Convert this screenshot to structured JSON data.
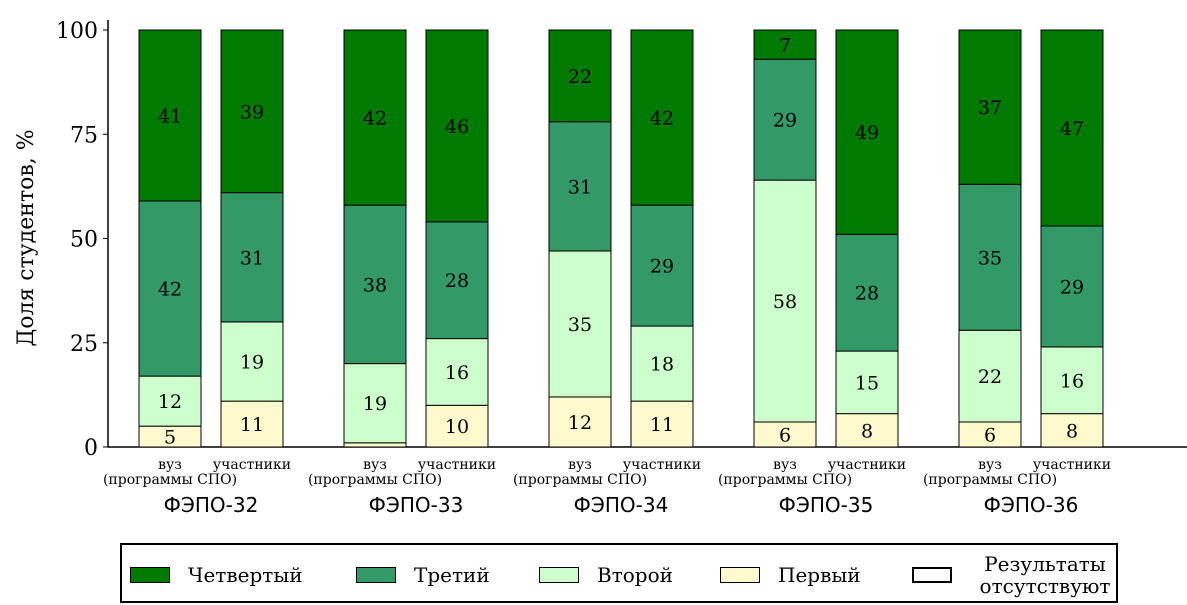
{
  "chart_data": {
    "type": "bar",
    "stacked": true,
    "ylabel": "Доля студентов, %",
    "ylim": [
      0,
      100
    ],
    "yticks": [
      0,
      25,
      50,
      75,
      100
    ],
    "bar_labels": [
      "вуз (программы СПО)",
      "участники"
    ],
    "groups": [
      "ФЭПО-32",
      "ФЭПО-33",
      "ФЭПО-34",
      "ФЭПО-35",
      "ФЭПО-36"
    ],
    "bar_label_lines": [
      [
        "вуз",
        "(программы СПО)"
      ],
      [
        "участники"
      ]
    ],
    "series": [
      {
        "name": "Первый",
        "color": "#fffacd",
        "values": [
          [
            5,
            11
          ],
          [
            1,
            10
          ],
          [
            12,
            11
          ],
          [
            6,
            8
          ],
          [
            6,
            8
          ]
        ]
      },
      {
        "name": "Второй",
        "color": "#ccffcc",
        "values": [
          [
            12,
            19
          ],
          [
            19,
            16
          ],
          [
            35,
            18
          ],
          [
            58,
            15
          ],
          [
            22,
            16
          ]
        ]
      },
      {
        "name": "Третий",
        "color": "#339966",
        "values": [
          [
            42,
            31
          ],
          [
            38,
            28
          ],
          [
            31,
            29
          ],
          [
            29,
            28
          ],
          [
            35,
            29
          ]
        ]
      },
      {
        "name": "Четвертый",
        "color": "#007a00",
        "values": [
          [
            41,
            39
          ],
          [
            42,
            46
          ],
          [
            22,
            42
          ],
          [
            7,
            49
          ],
          [
            37,
            47
          ]
        ]
      }
    ],
    "legend": {
      "position": "bottom",
      "entries": [
        {
          "label": "Четвертый",
          "color": "#007a00"
        },
        {
          "label": "Третий",
          "color": "#339966"
        },
        {
          "label": "Второй",
          "color": "#ccffcc"
        },
        {
          "label": "Первый",
          "color": "#fffacd"
        },
        {
          "label": "Результаты отсутствуют",
          "color": "#ffffff"
        }
      ]
    },
    "grid": false
  }
}
